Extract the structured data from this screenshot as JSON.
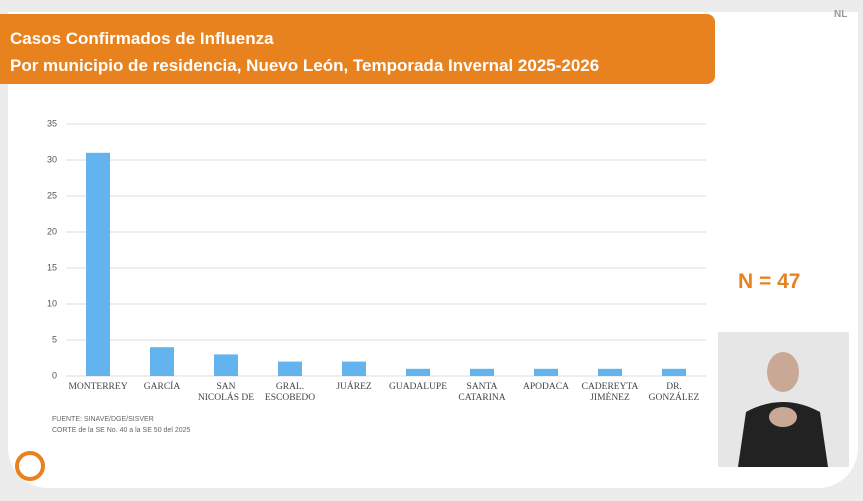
{
  "chart_data": {
    "type": "bar",
    "title": "Casos Confirmados de Influenza",
    "subtitle": "Por municipio de residencia, Nuevo León, Temporada Invernal 2025-2026",
    "categories": [
      "MONTERREY",
      "GARCÍA",
      "SAN NICOLÁS DE",
      "GRAL. ESCOBEDO",
      "JUÁREZ",
      "GUADALUPE",
      "SANTA CATARINA",
      "APODACA",
      "CADEREYTA JIMÉNEZ",
      "DR. GONZÁLEZ"
    ],
    "values": [
      31,
      4,
      3,
      2,
      2,
      1,
      1,
      1,
      1,
      1
    ],
    "color": "#63b3ef",
    "ylim": [
      0,
      35
    ],
    "yticks": [
      0,
      5,
      10,
      15,
      20,
      25,
      30,
      35
    ],
    "grid": true,
    "annotation": "N = 47",
    "notes": [
      "FUENTE: SINAVE/DGE/SISVER",
      "CORTE de la SE No. 40 a la SE 50 del 2025"
    ]
  },
  "logo": "NL"
}
